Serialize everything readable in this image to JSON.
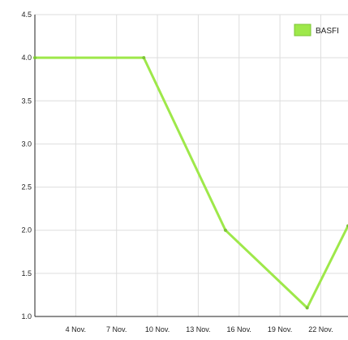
{
  "chart_data": {
    "type": "line",
    "title": "",
    "xlabel": "",
    "ylabel": "",
    "ylim": [
      1.0,
      4.5
    ],
    "xlim": [
      "1 Nov.",
      "24 Nov."
    ],
    "y_ticks": [
      "1.0",
      "1.5",
      "2.0",
      "2.5",
      "3.0",
      "3.5",
      "4.0",
      "4.5"
    ],
    "x_ticks": [
      {
        "date": "4 Nov.",
        "label": "4 Nov."
      },
      {
        "date": "7 Nov.",
        "label": "7 Nov."
      },
      {
        "date": "10 Nov.",
        "label": "10 Nov."
      },
      {
        "date": "13 Nov.",
        "label": "13 Nov."
      },
      {
        "date": "16 Nov.",
        "label": "16 Nov."
      },
      {
        "date": "19 Nov.",
        "label": "19 Nov."
      },
      {
        "date": "22 Nov.",
        "label": "22 Nov."
      }
    ],
    "grid": true,
    "legend_position": "top-right",
    "series": [
      {
        "name": "BASFI",
        "color": "#9ee84a",
        "points": [
          {
            "x": "1 Nov.",
            "y": 4.0
          },
          {
            "x": "9 Nov.",
            "y": 4.0
          },
          {
            "x": "15 Nov.",
            "y": 2.0
          },
          {
            "x": "21 Nov.",
            "y": 1.1
          },
          {
            "x": "24 Nov.",
            "y": 2.05
          }
        ]
      }
    ]
  }
}
